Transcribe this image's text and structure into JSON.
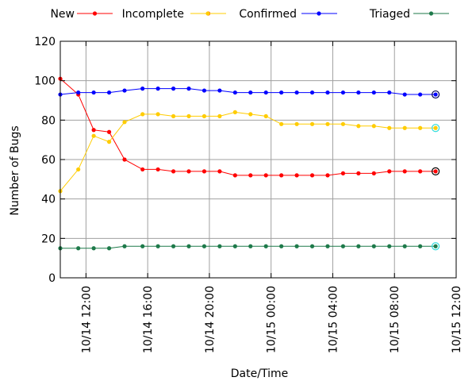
{
  "chart_data": {
    "type": "line",
    "xlabel": "Date/Time",
    "ylabel": "Number of Bugs",
    "ylim": [
      0,
      120
    ],
    "y_ticks": [
      0,
      20,
      40,
      60,
      80,
      100,
      120
    ],
    "xlim": [
      "2014-10-14 10:20",
      "2014-10-15 12:00"
    ],
    "x_ticks": [
      {
        "x": "2014-10-14 12:00",
        "label": "10/14 12:00"
      },
      {
        "x": "2014-10-14 16:00",
        "label": "10/14 16:00"
      },
      {
        "x": "2014-10-14 20:00",
        "label": "10/14 20:00"
      },
      {
        "x": "2014-10-15 00:00",
        "label": "10/15 00:00"
      },
      {
        "x": "2014-10-15 04:00",
        "label": "10/15 04:00"
      },
      {
        "x": "2014-10-15 08:00",
        "label": "10/15 08:00"
      },
      {
        "x": "2014-10-15 12:00",
        "label": "10/15 12:00"
      }
    ],
    "grid": true,
    "legend": "top",
    "x": [
      "2014-10-14 10:20",
      "2014-10-14 11:30",
      "2014-10-14 12:30",
      "2014-10-14 13:30",
      "2014-10-14 14:30",
      "2014-10-14 15:40",
      "2014-10-14 16:40",
      "2014-10-14 17:40",
      "2014-10-14 18:40",
      "2014-10-14 19:40",
      "2014-10-14 20:40",
      "2014-10-14 21:40",
      "2014-10-14 22:40",
      "2014-10-14 23:40",
      "2014-10-15 00:40",
      "2014-10-15 01:40",
      "2014-10-15 02:40",
      "2014-10-15 03:40",
      "2014-10-15 04:40",
      "2014-10-15 05:40",
      "2014-10-15 06:40",
      "2014-10-15 07:40",
      "2014-10-15 08:40",
      "2014-10-15 09:40",
      "2014-10-15 10:40"
    ],
    "series": [
      {
        "name": "New",
        "color": "#ff0000",
        "values": [
          null,
          null,
          null,
          null,
          null,
          null,
          null,
          null,
          null,
          null,
          null,
          null,
          null,
          null,
          null,
          null,
          null,
          null,
          null,
          null,
          null,
          null,
          null,
          null,
          null
        ]
      },
      {
        "name": "Incomplete",
        "color": "#ff0000",
        "values": [
          101,
          93,
          75,
          74,
          60,
          55,
          55,
          54,
          54,
          54,
          54,
          52,
          52,
          52,
          52,
          52,
          52,
          52,
          53,
          53,
          53,
          54,
          54,
          54,
          54
        ]
      },
      {
        "name": "Confirmed",
        "color": "#ffcc00",
        "values": [
          44,
          55,
          72,
          69,
          79,
          83,
          83,
          82,
          82,
          82,
          82,
          84,
          83,
          82,
          78,
          78,
          78,
          78,
          78,
          77,
          77,
          76,
          76,
          76,
          76
        ]
      },
      {
        "name": "",
        "color": "#0000ff",
        "values": [
          93,
          94,
          94,
          94,
          95,
          96,
          96,
          96,
          96,
          95,
          95,
          94,
          94,
          94,
          94,
          94,
          94,
          94,
          94,
          94,
          94,
          94,
          93,
          93,
          93
        ]
      },
      {
        "name": "Triaged",
        "color": "#1e7a4a",
        "values": [
          15,
          15,
          15,
          15,
          16,
          16,
          16,
          16,
          16,
          16,
          16,
          16,
          16,
          16,
          16,
          16,
          16,
          16,
          16,
          16,
          16,
          16,
          16,
          16,
          16
        ]
      }
    ],
    "last_point_rings": {
      "Incomplete": "#000000",
      "Confirmed": "#33dddd",
      "": "#000055",
      "Triaged": "#33dddd"
    }
  }
}
